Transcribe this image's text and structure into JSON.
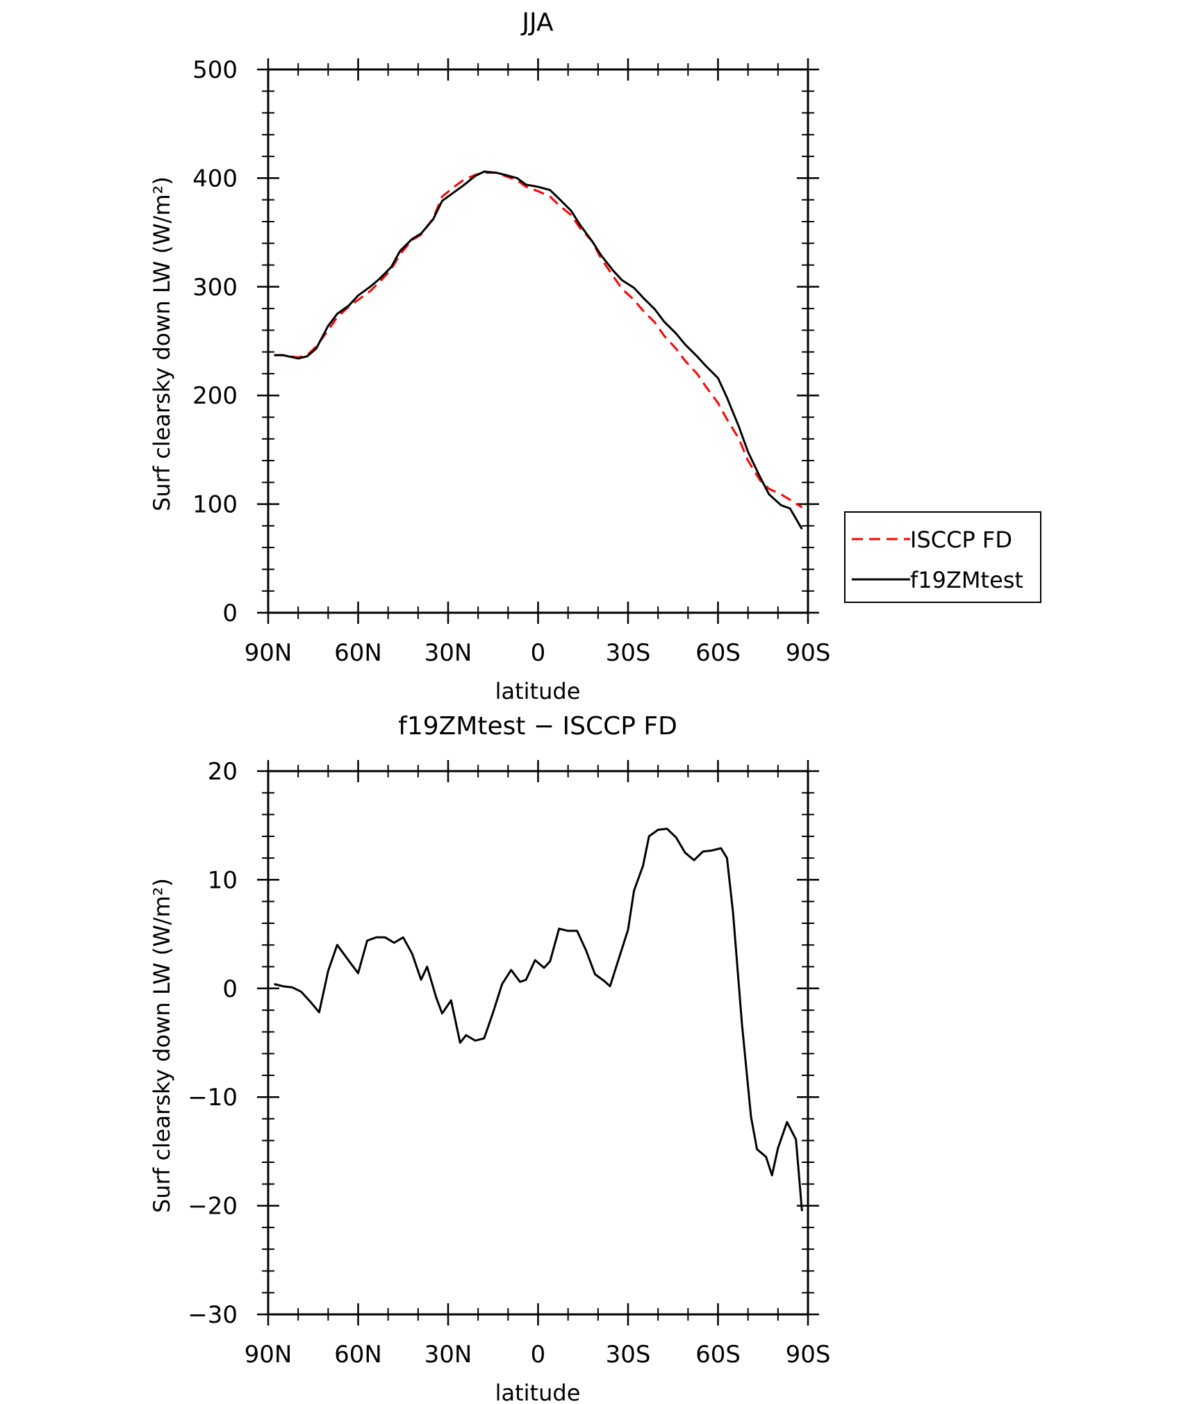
{
  "chart_data": [
    {
      "type": "line",
      "title": "JJA",
      "xlabel": "latitude",
      "ylabel": "Surf clearsky down LW (W/m²)",
      "xlim": [
        -90,
        90
      ],
      "ylim": [
        0,
        500
      ],
      "x_ticks": [
        -90,
        -60,
        -30,
        0,
        30,
        60,
        90
      ],
      "x_tick_labels": [
        "90N",
        "60N",
        "30N",
        "0",
        "30S",
        "60S",
        "90S"
      ],
      "y_ticks": [
        0,
        100,
        200,
        300,
        400,
        500
      ],
      "y_tick_labels": [
        "0",
        "100",
        "200",
        "300",
        "400",
        "500"
      ],
      "grid": false,
      "legend_position": "right",
      "series": [
        {
          "name": "ISCCP FD",
          "color": "#ff0000",
          "dash": "dashed",
          "x": [
            -88,
            -85,
            -80,
            -77,
            -74,
            -70,
            -67,
            -63,
            -60,
            -56,
            -53,
            -49,
            -46,
            -42,
            -39,
            -35,
            -32,
            -28,
            -25,
            -21,
            -18,
            -14,
            -11,
            -7,
            -4,
            0,
            4,
            7,
            11,
            14,
            18,
            21,
            25,
            28,
            32,
            35,
            39,
            42,
            46,
            49,
            53,
            56,
            60,
            63,
            67,
            70,
            74,
            77,
            81,
            84,
            88
          ],
          "y": [
            237,
            237,
            235,
            237,
            245,
            260,
            272,
            282,
            288,
            296,
            304,
            316,
            330,
            343,
            348,
            363,
            383,
            392,
            398,
            403,
            405,
            405,
            402,
            398,
            392,
            388,
            383,
            375,
            366,
            354,
            342,
            326,
            310,
            298,
            288,
            278,
            267,
            255,
            243,
            232,
            220,
            208,
            193,
            178,
            160,
            140,
            122,
            114,
            109,
            104,
            97
          ]
        },
        {
          "name": "f19ZMtest",
          "color": "#000000",
          "dash": "solid",
          "x": [
            -88,
            -85,
            -80,
            -77,
            -74,
            -70,
            -67,
            -63,
            -60,
            -56,
            -53,
            -49,
            -46,
            -42,
            -39,
            -35,
            -32,
            -28,
            -25,
            -21,
            -18,
            -14,
            -11,
            -7,
            -4,
            0,
            4,
            7,
            11,
            14,
            18,
            21,
            25,
            28,
            32,
            35,
            39,
            42,
            46,
            49,
            53,
            56,
            60,
            63,
            67,
            70,
            74,
            77,
            81,
            84,
            88
          ],
          "y": [
            237,
            237,
            234,
            236,
            243,
            264,
            275,
            283,
            292,
            300,
            307,
            318,
            333,
            344,
            349,
            362,
            379,
            387,
            393,
            402,
            406,
            405,
            403,
            400,
            394,
            392,
            389,
            381,
            370,
            357,
            342,
            329,
            315,
            306,
            299,
            290,
            279,
            268,
            257,
            247,
            236,
            227,
            216,
            198,
            171,
            148,
            125,
            109,
            99,
            96,
            77
          ]
        }
      ]
    },
    {
      "type": "line",
      "title": "f19ZMtest − ISCCP FD",
      "xlabel": "latitude",
      "ylabel": "Surf clearsky down LW (W/m²)",
      "xlim": [
        -90,
        90
      ],
      "ylim": [
        -30,
        20
      ],
      "x_ticks": [
        -90,
        -60,
        -30,
        0,
        30,
        60,
        90
      ],
      "x_tick_labels": [
        "90N",
        "60N",
        "30N",
        "0",
        "30S",
        "60S",
        "90S"
      ],
      "y_ticks": [
        -30,
        -20,
        -10,
        0,
        10,
        20
      ],
      "y_tick_labels": [
        "−30",
        "−20",
        "−10",
        "0",
        "10",
        "20"
      ],
      "grid": false,
      "series": [
        {
          "color": "#000000",
          "dash": "solid",
          "x": [
            -88,
            -85,
            -82,
            -79,
            -76,
            -73,
            -70,
            -67,
            -63,
            -60,
            -57,
            -54,
            -51,
            -48,
            -45,
            -42,
            -39,
            -37,
            -34,
            -32,
            -29,
            -26,
            -24,
            -21,
            -18,
            -15,
            -12,
            -9,
            -6,
            -4,
            -1,
            2,
            4,
            7,
            10,
            13,
            16,
            19,
            22,
            24,
            27,
            30,
            32,
            35,
            37,
            40,
            43,
            46,
            49,
            52,
            55,
            58,
            61,
            63,
            65,
            68,
            71,
            73,
            76,
            78,
            80,
            83,
            86,
            88
          ],
          "y": [
            0.4,
            0.2,
            0.1,
            -0.3,
            -1.2,
            -2.2,
            1.6,
            4.0,
            2.5,
            1.4,
            4.4,
            4.7,
            4.7,
            4.2,
            4.7,
            3.2,
            0.8,
            2.0,
            -0.8,
            -2.3,
            -1.1,
            -5.0,
            -4.3,
            -4.8,
            -4.6,
            -2.2,
            0.4,
            1.7,
            0.6,
            0.8,
            2.6,
            1.9,
            2.5,
            5.5,
            5.3,
            5.3,
            3.5,
            1.3,
            0.7,
            0.2,
            2.8,
            5.4,
            9.0,
            11.3,
            14.0,
            14.6,
            14.7,
            13.9,
            12.5,
            11.8,
            12.6,
            12.7,
            12.9,
            12.0,
            7.0,
            -3.3,
            -11.8,
            -14.8,
            -15.5,
            -17.2,
            -14.7,
            -12.3,
            -13.9,
            -20.5
          ]
        }
      ]
    }
  ]
}
